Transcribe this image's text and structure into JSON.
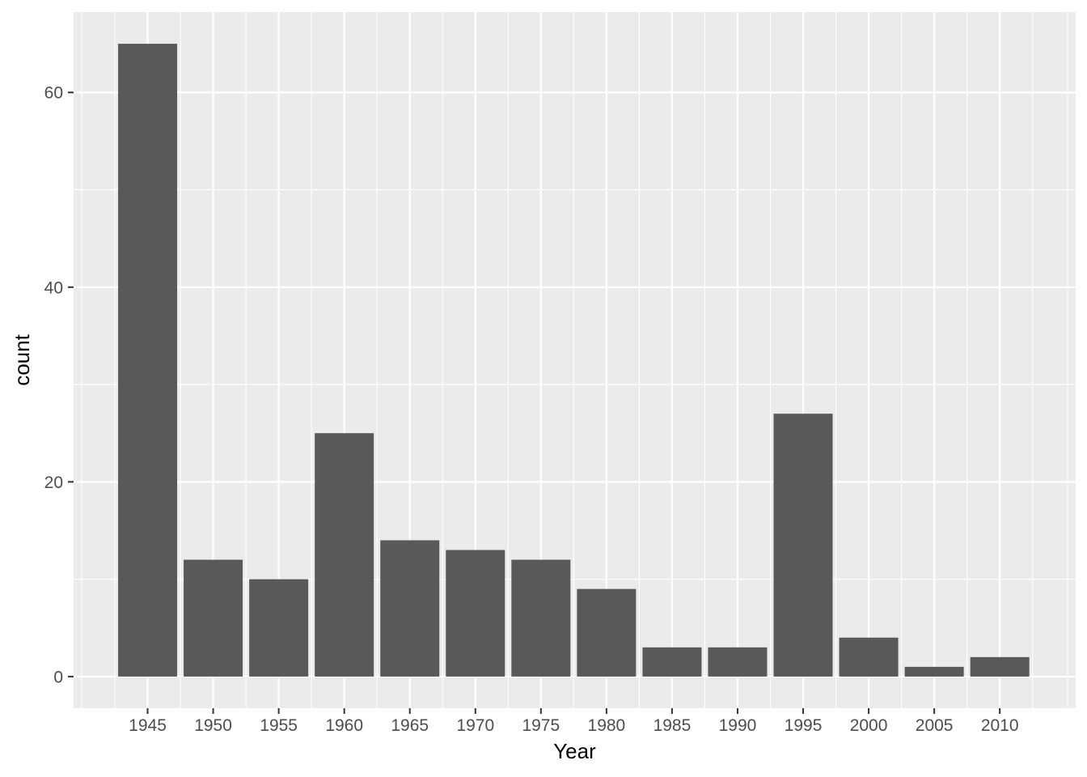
{
  "chart_data": {
    "type": "bar",
    "title": "",
    "xlabel": "Year",
    "ylabel": "count",
    "categories": [
      "1945",
      "1950",
      "1955",
      "1960",
      "1965",
      "1970",
      "1975",
      "1980",
      "1985",
      "1990",
      "1995",
      "2000",
      "2005",
      "2010"
    ],
    "values": [
      65,
      12,
      10,
      25,
      14,
      13,
      12,
      9,
      3,
      3,
      27,
      4,
      1,
      2
    ],
    "ylim": [
      -3.25,
      68.25
    ],
    "yticks": [
      0,
      20,
      40,
      60
    ],
    "grid": true,
    "legend": "none",
    "colors": {
      "panel": "#ebebeb",
      "grid": "#ffffff",
      "bar": "#595959",
      "tick_text": "#4d4d4d",
      "tick_mark": "#333333"
    }
  }
}
